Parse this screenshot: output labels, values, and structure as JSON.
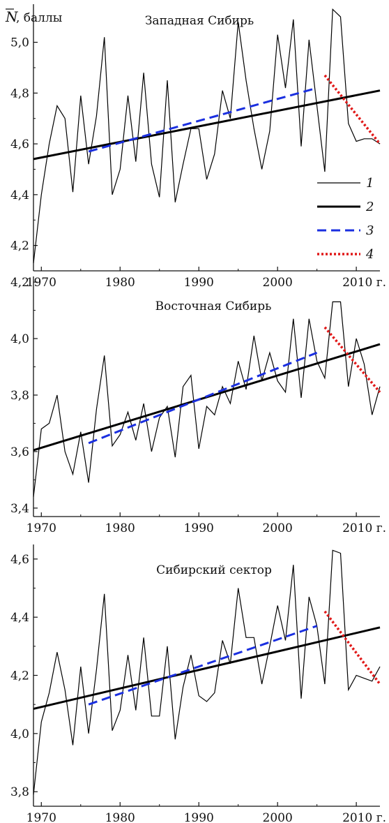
{
  "figure": {
    "ylabel_symbol": "N",
    "ylabel_unit": ", баллы",
    "x_last_tick_suffix": " г."
  },
  "legend": [
    {
      "key": "1",
      "style": "thin-black"
    },
    {
      "key": "2",
      "style": "thick-black"
    },
    {
      "key": "3",
      "style": "dashed-blue"
    },
    {
      "key": "4",
      "style": "dotted-red"
    }
  ],
  "colors": {
    "observed": "#000000",
    "trend_full": "#000000",
    "trend_3": "#1a2fe0",
    "trend_4": "#e01818"
  },
  "chart_data": [
    {
      "type": "line",
      "title": "Западная Сибирь",
      "xlabel": "",
      "ylabel": "N, баллы",
      "xlim": [
        1969,
        2013
      ],
      "ylim": [
        4.1,
        5.15
      ],
      "x_ticks": [
        1970,
        1980,
        1990,
        2000,
        2010
      ],
      "y_ticks": [
        4.2,
        4.4,
        4.6,
        4.8,
        5.0
      ],
      "x_ticklabels": [
        "1970",
        "1980",
        "1990",
        "2000",
        "2010 г."
      ],
      "y_ticklabels": [
        "4,2",
        "4,4",
        "4,6",
        "4,8",
        "5,0"
      ],
      "series": [
        {
          "name": "1",
          "x": [
            1969,
            1970,
            1971,
            1972,
            1973,
            1974,
            1975,
            1976,
            1977,
            1978,
            1979,
            1980,
            1981,
            1982,
            1983,
            1984,
            1985,
            1986,
            1987,
            1988,
            1989,
            1990,
            1991,
            1992,
            1993,
            1994,
            1995,
            1996,
            1997,
            1998,
            1999,
            2000,
            2001,
            2002,
            2003,
            2004,
            2005,
            2006,
            2007,
            2008,
            2009,
            2010,
            2011,
            2012,
            2013
          ],
          "values": [
            4.13,
            4.4,
            4.6,
            4.75,
            4.7,
            4.41,
            4.79,
            4.52,
            4.71,
            5.02,
            4.4,
            4.5,
            4.79,
            4.53,
            4.88,
            4.52,
            4.39,
            4.85,
            4.37,
            4.52,
            4.66,
            4.66,
            4.46,
            4.56,
            4.81,
            4.7,
            5.08,
            4.85,
            4.66,
            4.5,
            4.65,
            5.03,
            4.82,
            5.09,
            4.59,
            5.01,
            4.75,
            4.49,
            5.13,
            5.1,
            4.68,
            4.61,
            4.62,
            4.62,
            4.6
          ]
        },
        {
          "name": "2",
          "x": [
            1969,
            2013
          ],
          "values": [
            4.54,
            4.81
          ]
        },
        {
          "name": "3",
          "x": [
            1976,
            2005
          ],
          "values": [
            4.57,
            4.82
          ]
        },
        {
          "name": "4",
          "x": [
            2006,
            2013
          ],
          "values": [
            4.87,
            4.6
          ]
        }
      ]
    },
    {
      "type": "line",
      "title": "Восточная Сибирь",
      "xlabel": "",
      "ylabel": "",
      "xlim": [
        1969,
        2013
      ],
      "ylim": [
        3.37,
        4.22
      ],
      "x_ticks": [
        1970,
        1980,
        1990,
        2000,
        2010
      ],
      "y_ticks": [
        3.4,
        3.6,
        3.8,
        4.0,
        4.2
      ],
      "x_ticklabels": [
        "1970",
        "1980",
        "1990",
        "2000",
        "2010 г."
      ],
      "y_ticklabels": [
        "3,4",
        "3,6",
        "3,8",
        "4,0",
        "4,2"
      ],
      "series": [
        {
          "name": "1",
          "x": [
            1969,
            1970,
            1971,
            1972,
            1973,
            1974,
            1975,
            1976,
            1977,
            1978,
            1979,
            1980,
            1981,
            1982,
            1983,
            1984,
            1985,
            1986,
            1987,
            1988,
            1989,
            1990,
            1991,
            1992,
            1993,
            1994,
            1995,
            1996,
            1997,
            1998,
            1999,
            2000,
            2001,
            2002,
            2003,
            2004,
            2005,
            2006,
            2007,
            2008,
            2009,
            2010,
            2011,
            2012,
            2013
          ],
          "values": [
            3.44,
            3.68,
            3.7,
            3.8,
            3.6,
            3.52,
            3.67,
            3.49,
            3.75,
            3.94,
            3.62,
            3.66,
            3.74,
            3.64,
            3.77,
            3.6,
            3.72,
            3.76,
            3.58,
            3.83,
            3.87,
            3.61,
            3.76,
            3.73,
            3.83,
            3.77,
            3.92,
            3.82,
            4.01,
            3.85,
            3.95,
            3.85,
            3.81,
            4.07,
            3.79,
            4.07,
            3.92,
            3.86,
            4.13,
            4.13,
            3.83,
            4.0,
            3.91,
            3.73,
            3.83
          ]
        },
        {
          "name": "2",
          "x": [
            1969,
            2013
          ],
          "values": [
            3.605,
            3.98
          ]
        },
        {
          "name": "3",
          "x": [
            1976,
            2005
          ],
          "values": [
            3.63,
            3.95
          ]
        },
        {
          "name": "4",
          "x": [
            2006,
            2013
          ],
          "values": [
            4.04,
            3.81
          ]
        }
      ]
    },
    {
      "type": "line",
      "title": "Сибирский сектор",
      "xlabel": "",
      "ylabel": "",
      "xlim": [
        1969,
        2013
      ],
      "ylim": [
        3.75,
        4.65
      ],
      "x_ticks": [
        1970,
        1980,
        1990,
        2000,
        2010
      ],
      "y_ticks": [
        3.8,
        4.0,
        4.2,
        4.4,
        4.6
      ],
      "x_ticklabels": [
        "1970",
        "1980",
        "1990",
        "2000",
        "2010 г."
      ],
      "y_ticklabels": [
        "3,8",
        "4,0",
        "4,2",
        "4,4",
        "4,6"
      ],
      "series": [
        {
          "name": "1",
          "x": [
            1969,
            1970,
            1971,
            1972,
            1973,
            1974,
            1975,
            1976,
            1977,
            1978,
            1979,
            1980,
            1981,
            1982,
            1983,
            1984,
            1985,
            1986,
            1987,
            1988,
            1989,
            1990,
            1991,
            1992,
            1993,
            1994,
            1995,
            1996,
            1997,
            1998,
            1999,
            2000,
            2001,
            2002,
            2003,
            2004,
            2005,
            2006,
            2007,
            2008,
            2009,
            2010,
            2011,
            2012,
            2013
          ],
          "values": [
            3.79,
            4.04,
            4.14,
            4.28,
            4.15,
            3.96,
            4.23,
            4.0,
            4.22,
            4.48,
            4.01,
            4.08,
            4.27,
            4.08,
            4.33,
            4.06,
            4.06,
            4.3,
            3.98,
            4.16,
            4.27,
            4.13,
            4.11,
            4.14,
            4.32,
            4.24,
            4.5,
            4.33,
            4.33,
            4.17,
            4.3,
            4.44,
            4.32,
            4.58,
            4.12,
            4.47,
            4.37,
            4.17,
            4.63,
            4.62,
            4.15,
            4.2,
            4.19,
            4.18,
            4.23
          ]
        },
        {
          "name": "2",
          "x": [
            1969,
            2013
          ],
          "values": [
            4.085,
            4.365
          ]
        },
        {
          "name": "3",
          "x": [
            1976,
            2005
          ],
          "values": [
            4.1,
            4.37
          ]
        },
        {
          "name": "4",
          "x": [
            2006,
            2013
          ],
          "values": [
            4.42,
            4.17
          ]
        }
      ]
    }
  ]
}
